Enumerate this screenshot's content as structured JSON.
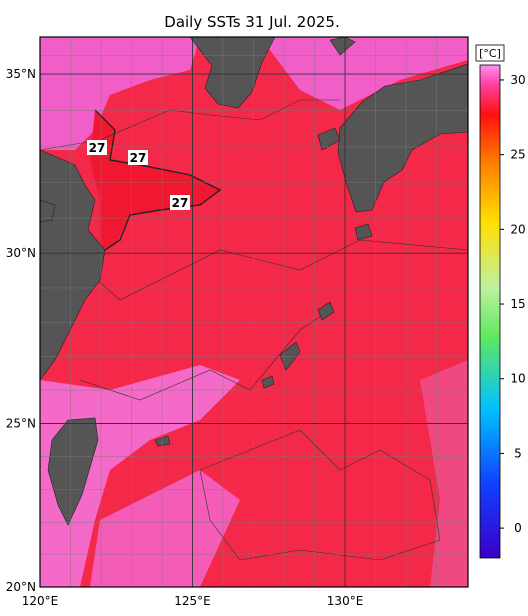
{
  "chart_data": {
    "type": "map",
    "title": "Daily SSTs 31 Jul. 2025.",
    "xlim": [
      120,
      134.03
    ],
    "ylim": [
      20,
      36
    ],
    "xticks": [
      {
        "value": 120,
        "label": "120°E"
      },
      {
        "value": 125,
        "label": "125°E"
      },
      {
        "value": 130,
        "label": "130°E"
      }
    ],
    "yticks": [
      {
        "value": 20,
        "label": "20°N"
      },
      {
        "value": 25,
        "label": "25°N"
      },
      {
        "value": 30,
        "label": "30°N"
      },
      {
        "value": 35,
        "label": "35°N"
      }
    ],
    "xgrid": [
      121,
      122,
      123,
      124,
      126,
      127,
      128,
      129,
      131,
      132,
      133
    ],
    "ygrid": [
      21,
      22,
      23,
      24,
      26,
      27,
      28,
      29,
      31,
      32,
      33,
      34,
      35.5
    ],
    "colorbar": {
      "label": "[°C]",
      "lim": [
        -2,
        31
      ],
      "ticks": [
        0,
        5,
        10,
        15,
        20,
        25,
        30
      ]
    },
    "contour_labels": [
      "27",
      "27",
      "27"
    ]
  }
}
